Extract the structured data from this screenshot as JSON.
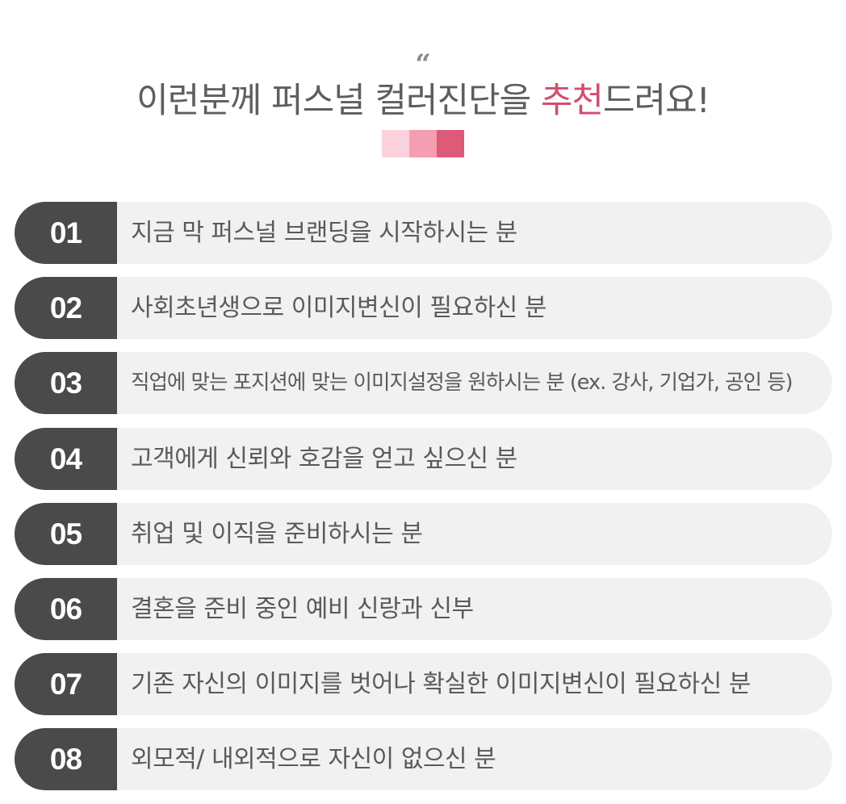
{
  "header": {
    "quote_mark": "“",
    "title_before": "이런분께 퍼스널 컬러진단을 ",
    "title_accent": "추천",
    "title_after": "드려요!",
    "swatch_colors": [
      "#fcd3dd",
      "#f59db1",
      "#dd5a78"
    ]
  },
  "items": [
    {
      "number": "01",
      "text": "지금 막 퍼스널 브랜딩을 시작하시는 분"
    },
    {
      "number": "02",
      "text": "사회초년생으로 이미지변신이 필요하신 분"
    },
    {
      "number": "03",
      "text": "직업에 맞는 포지션에 맞는 이미지설정을 원하시는 분 (ex. 강사, 기업가, 공인 등)"
    },
    {
      "number": "04",
      "text": "고객에게 신뢰와 호감을 얻고 싶으신 분"
    },
    {
      "number": "05",
      "text": "취업 및 이직을 준비하시는 분"
    },
    {
      "number": "06",
      "text": "결혼을 준비 중인 예비 신랑과 신부"
    },
    {
      "number": "07",
      "text": "기존 자신의 이미지를 벗어나 확실한 이미지변신이 필요하신 분"
    },
    {
      "number": "08",
      "text": "외모적/ 내외적으로 자신이 없으신 분"
    }
  ],
  "colors": {
    "badge": "#4a4a4a",
    "row_background": "#f1f1f1",
    "title_text": "#5e5e5e",
    "accent": "#d14e6e"
  }
}
